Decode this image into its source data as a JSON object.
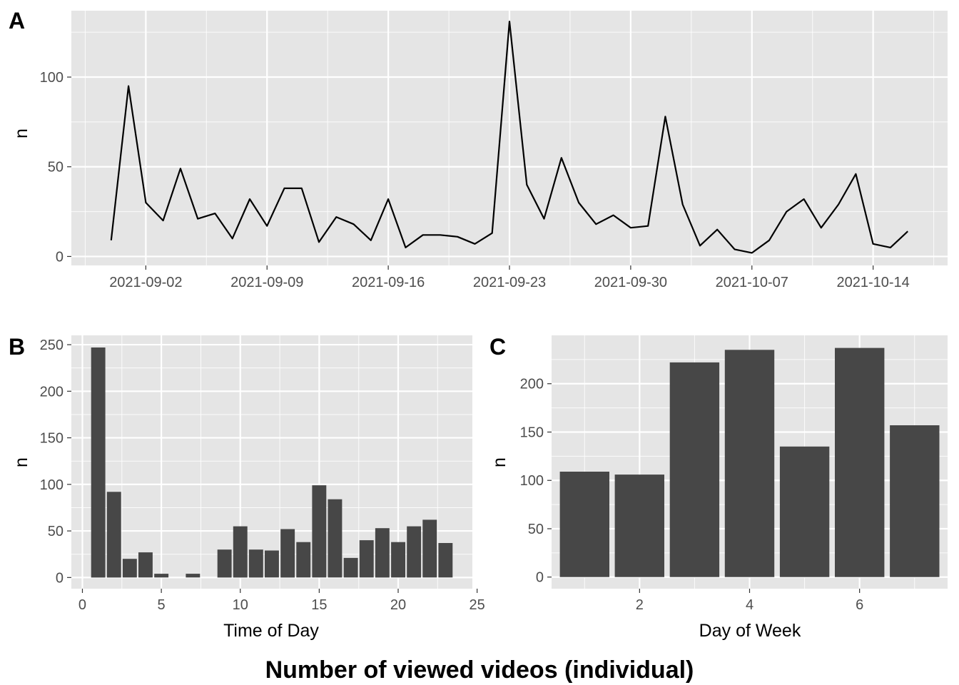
{
  "caption": "Number of viewed videos (individual)",
  "chart_data": [
    {
      "tag": "A",
      "type": "line",
      "xlabel": "",
      "ylabel": "n",
      "x_start": "2021-08-31",
      "x_tick_labels": [
        "2021-09-02",
        "2021-09-09",
        "2021-09-16",
        "2021-09-23",
        "2021-09-30",
        "2021-10-07",
        "2021-10-14"
      ],
      "y_tick_labels": [
        "0",
        "50",
        "100"
      ],
      "ylim": [
        -5,
        137
      ],
      "series": [
        {
          "x": [
            "2021-08-31",
            "2021-09-01",
            "2021-09-02",
            "2021-09-03",
            "2021-09-04",
            "2021-09-05",
            "2021-09-06",
            "2021-09-07",
            "2021-09-08",
            "2021-09-09",
            "2021-09-10",
            "2021-09-11",
            "2021-09-12",
            "2021-09-13",
            "2021-09-14",
            "2021-09-15",
            "2021-09-16",
            "2021-09-17",
            "2021-09-18",
            "2021-09-19",
            "2021-09-20",
            "2021-09-21",
            "2021-09-22",
            "2021-09-23",
            "2021-09-24",
            "2021-09-25",
            "2021-09-26",
            "2021-09-27",
            "2021-09-28",
            "2021-09-29",
            "2021-09-30",
            "2021-10-01",
            "2021-10-02",
            "2021-10-03",
            "2021-10-04",
            "2021-10-05",
            "2021-10-06",
            "2021-10-07",
            "2021-10-08",
            "2021-10-09",
            "2021-10-10",
            "2021-10-11",
            "2021-10-12",
            "2021-10-13",
            "2021-10-14",
            "2021-10-15",
            "2021-10-16"
          ],
          "values": [
            9,
            95,
            30,
            20,
            49,
            21,
            24,
            10,
            32,
            17,
            38,
            38,
            8,
            22,
            18,
            9,
            32,
            5,
            12,
            12,
            11,
            7,
            13,
            131,
            40,
            21,
            55,
            30,
            18,
            23,
            16,
            17,
            78,
            29,
            6,
            15,
            4,
            2,
            9,
            25,
            32,
            16,
            29,
            46,
            7,
            5,
            14
          ]
        }
      ]
    },
    {
      "tag": "B",
      "type": "bar",
      "xlabel": "Time of Day",
      "ylabel": "n",
      "x_tick_labels": [
        "0",
        "5",
        "10",
        "15",
        "20",
        "25"
      ],
      "y_tick_labels": [
        "0",
        "50",
        "100",
        "150",
        "200",
        "250"
      ],
      "xlim": [
        -0.7,
        24.7
      ],
      "ylim": [
        -12,
        260
      ],
      "categories": [
        1,
        2,
        3,
        4,
        5,
        6,
        7,
        8,
        9,
        10,
        11,
        12,
        13,
        14,
        15,
        16,
        17,
        18,
        19,
        20,
        21,
        22,
        23
      ],
      "values": [
        247,
        92,
        20,
        27,
        4,
        0,
        4,
        0,
        30,
        55,
        30,
        29,
        52,
        38,
        99,
        84,
        21,
        40,
        53,
        38,
        55,
        62,
        37
      ]
    },
    {
      "tag": "C",
      "type": "bar",
      "xlabel": "Day of Week",
      "ylabel": "n",
      "x_tick_labels": [
        "2",
        "4",
        "6"
      ],
      "y_tick_labels": [
        "0",
        "50",
        "100",
        "150",
        "200"
      ],
      "xlim": [
        0.4,
        7.6
      ],
      "ylim": [
        -12,
        250
      ],
      "categories": [
        1,
        2,
        3,
        4,
        5,
        6,
        7
      ],
      "values": [
        109,
        106,
        222,
        235,
        135,
        237,
        157
      ]
    }
  ]
}
